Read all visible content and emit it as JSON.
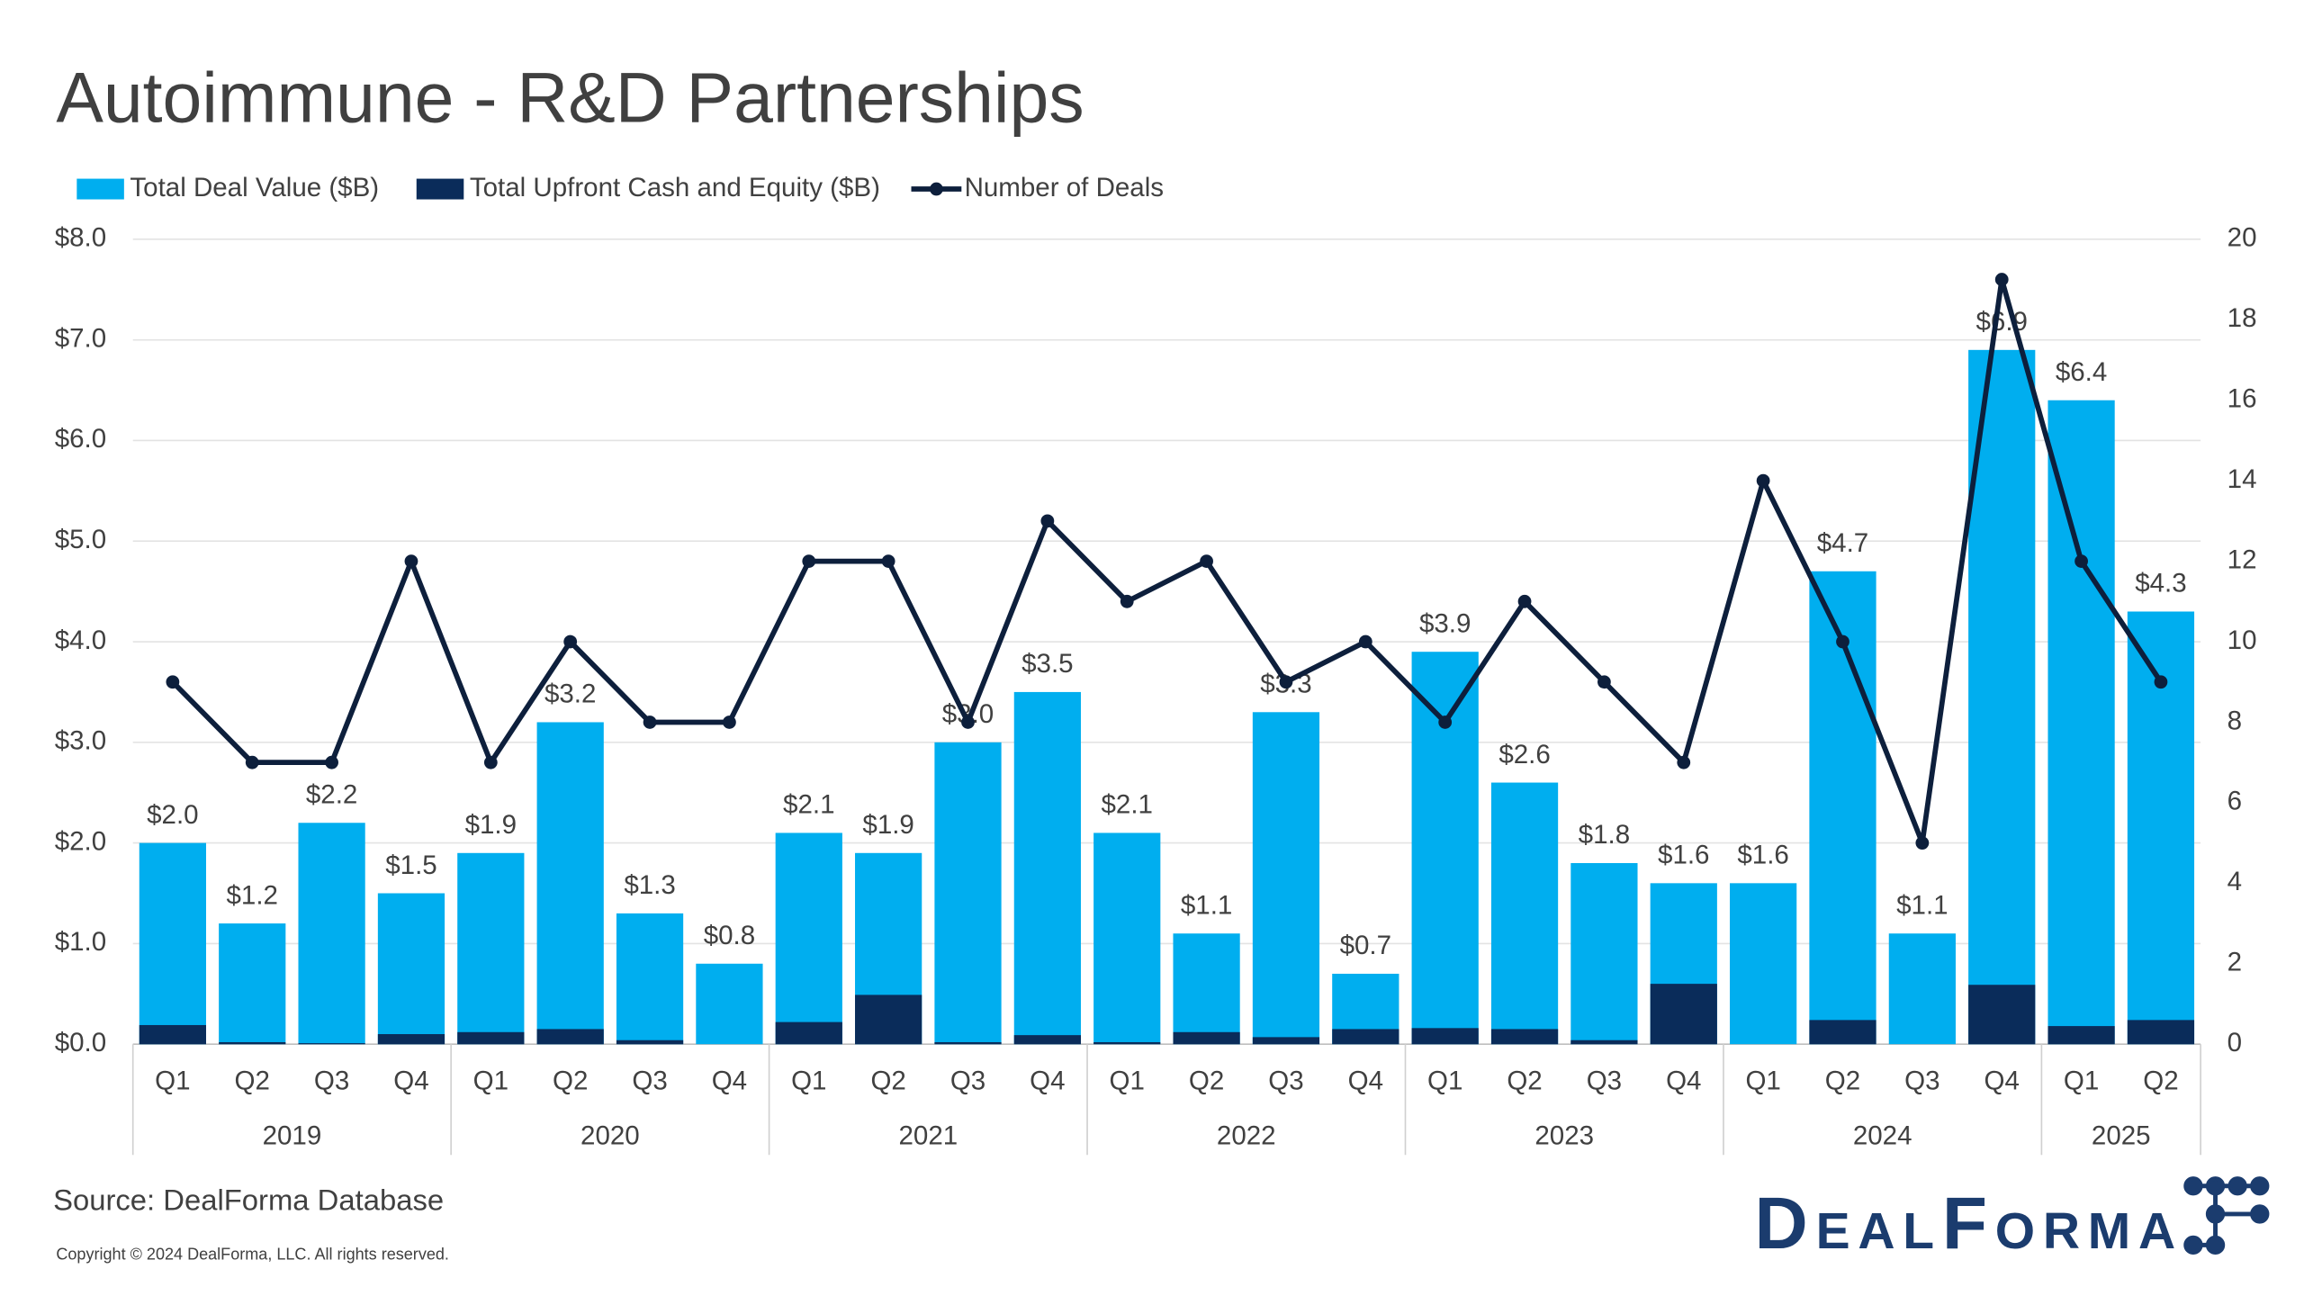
{
  "chart_data": {
    "type": "bar-line",
    "title": "Autoimmune - R&D Partnerships",
    "source": "Source: DealForma Database",
    "copyright": "Copyright © 2024 DealForma, LLC. All rights reserved.",
    "logo": "DealForma",
    "groups": [
      {
        "label": "2019",
        "categories": [
          "Q1",
          "Q2",
          "Q3",
          "Q4"
        ]
      },
      {
        "label": "2020",
        "categories": [
          "Q1",
          "Q2",
          "Q3",
          "Q4"
        ]
      },
      {
        "label": "2021",
        "categories": [
          "Q1",
          "Q2",
          "Q3",
          "Q4"
        ]
      },
      {
        "label": "2022",
        "categories": [
          "Q1",
          "Q2",
          "Q3",
          "Q4"
        ]
      },
      {
        "label": "2023",
        "categories": [
          "Q1",
          "Q2",
          "Q3",
          "Q4"
        ]
      },
      {
        "label": "2024",
        "categories": [
          "Q1",
          "Q2",
          "Q3",
          "Q4"
        ]
      },
      {
        "label": "2025",
        "categories": [
          "Q1",
          "Q2"
        ]
      }
    ],
    "series": [
      {
        "name": "Total Deal Value ($B)",
        "type": "bar",
        "color": "#00aeef",
        "values": [
          2.0,
          1.2,
          2.2,
          1.5,
          1.9,
          3.2,
          1.3,
          0.8,
          2.1,
          1.9,
          3.0,
          3.5,
          2.1,
          1.1,
          3.3,
          0.7,
          3.9,
          2.6,
          1.8,
          1.6,
          1.6,
          4.7,
          1.1,
          6.9,
          6.4,
          4.3
        ],
        "value_labels": [
          "$2.0",
          "$1.2",
          "$2.2",
          "$1.5",
          "$1.9",
          "$3.2",
          "$1.3",
          "$0.8",
          "$2.1",
          "$1.9",
          "$3.0",
          "$3.5",
          "$2.1",
          "$1.1",
          "$3.3",
          "$0.7",
          "$3.9",
          "$2.6",
          "$1.8",
          "$1.6",
          "$1.6",
          "$4.7",
          "$1.1",
          "$6.9",
          "$6.4",
          "$4.3"
        ]
      },
      {
        "name": "Total Upfront Cash and Equity ($B)",
        "type": "bar",
        "color": "#0a2c5a",
        "values": [
          0.19,
          0.02,
          0.01,
          0.1,
          0.12,
          0.15,
          0.04,
          0,
          0.22,
          0.49,
          0.02,
          0.09,
          0.02,
          0.12,
          0.07,
          0.15,
          0.16,
          0.15,
          0.04,
          0.6,
          0,
          0.24,
          0,
          0.59,
          0.18,
          0.24
        ]
      },
      {
        "name": "Number of Deals",
        "type": "line",
        "axis": "y2",
        "color": "#0d1f3c",
        "values": [
          9,
          7,
          7,
          12,
          7,
          10,
          8,
          8,
          12,
          12,
          8,
          13,
          11,
          12,
          9,
          10,
          8,
          11,
          9,
          7,
          14,
          10,
          5,
          19,
          12,
          9
        ]
      }
    ],
    "ylim": [
      0,
      8
    ],
    "yticks": [
      {
        "value": 0,
        "label": "$0.0"
      },
      {
        "value": 1,
        "label": "$1.0"
      },
      {
        "value": 2,
        "label": "$2.0"
      },
      {
        "value": 3,
        "label": "$3.0"
      },
      {
        "value": 4,
        "label": "$4.0"
      },
      {
        "value": 5,
        "label": "$5.0"
      },
      {
        "value": 6,
        "label": "$6.0"
      },
      {
        "value": 7,
        "label": "$7.0"
      },
      {
        "value": 8,
        "label": "$8.0"
      }
    ],
    "y2lim": [
      0,
      20
    ],
    "y2ticks": [
      0,
      2,
      4,
      6,
      8,
      10,
      12,
      14,
      16,
      18,
      20
    ],
    "grid": true,
    "legend": "top-left"
  }
}
